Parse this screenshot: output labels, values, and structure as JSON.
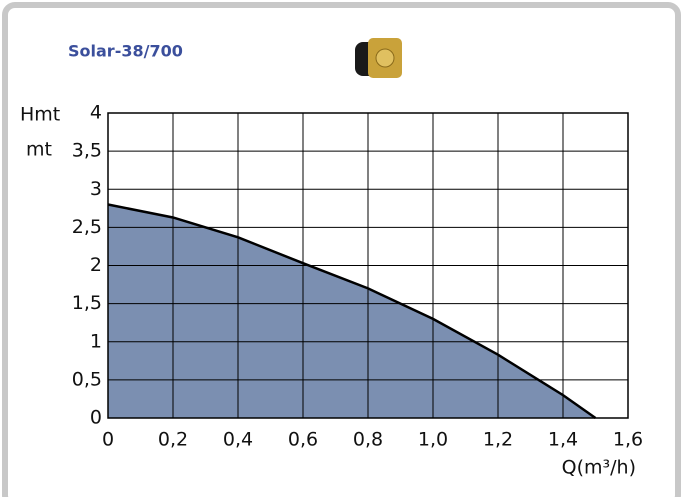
{
  "chart_data": {
    "type": "area",
    "title": "Solar-38/700",
    "y_label": [
      "Hmt",
      "mt"
    ],
    "x_label": "Q(m³/h)",
    "x": [
      0,
      0.2,
      0.4,
      0.6,
      0.8,
      1.0,
      1.2,
      1.4,
      1.5
    ],
    "values": [
      2.8,
      2.63,
      2.37,
      2.03,
      1.7,
      1.3,
      0.83,
      0.3,
      0
    ],
    "color": "#7b8fb1",
    "line_color": "#000000",
    "xlim": [
      0,
      1.6
    ],
    "xticks": [
      0,
      {
        "value": 0.2,
        "label": "0,2"
      },
      {
        "value": 0.4,
        "label": "0,4"
      },
      {
        "value": 0.6,
        "label": "0,6"
      },
      {
        "value": 0.8,
        "label": "0,8"
      },
      {
        "value": 1.0,
        "label": "1,0"
      },
      {
        "value": 1.2,
        "label": "1,2"
      },
      {
        "value": 1.4,
        "label": "1,4"
      },
      {
        "value": 1.6,
        "label": "1,6"
      }
    ],
    "ylim": [
      0,
      4
    ],
    "yticks": [
      0,
      {
        "value": 0.5,
        "label": "0,5"
      },
      1,
      {
        "value": 1.5,
        "label": "1,5"
      },
      2,
      {
        "value": 2.5,
        "label": "2,5"
      },
      3,
      {
        "value": 3.5,
        "label": "3,5"
      },
      4
    ],
    "grid": true
  }
}
